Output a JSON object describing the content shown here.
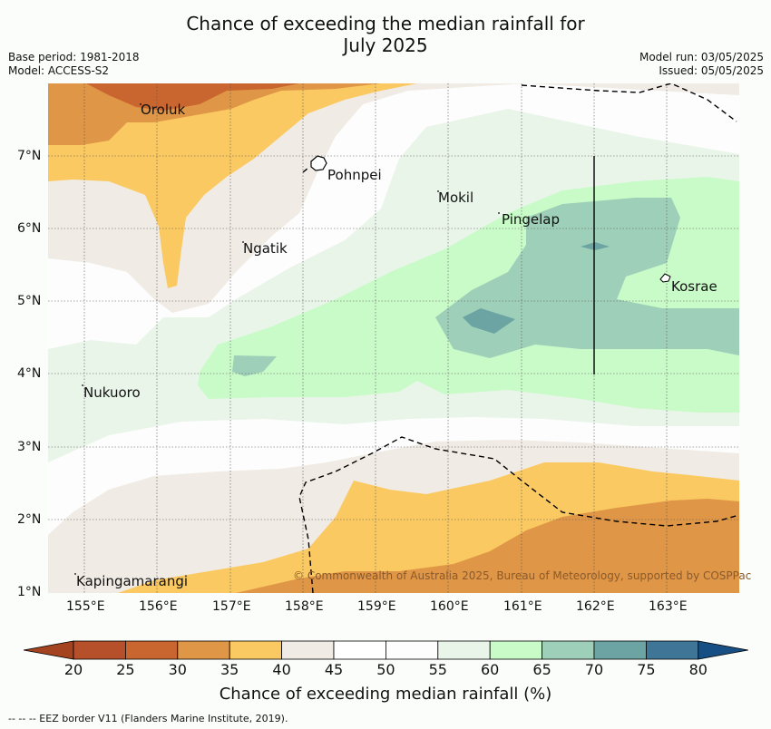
{
  "title_line1": "Chance of exceeding the median rainfall for",
  "title_line2": "July 2025",
  "base_period": "Base period: 1981-2018",
  "model": "Model: ACCESS-S2",
  "model_run": "Model run: 03/05/2025",
  "issued": "Issued: 05/05/2025",
  "copyright": "© Commonwealth of Australia 2025, Bureau of Meteorology, supported by COSPPac",
  "footer_note": "--  --  -- EEZ border V11 (Flanders Marine Institute, 2019).",
  "x_ticks": [
    "155°E",
    "156°E",
    "157°E",
    "158°E",
    "159°E",
    "160°E",
    "161°E",
    "162°E",
    "163°E"
  ],
  "y_ticks": [
    "7°N",
    "6°N",
    "5°N",
    "4°N",
    "3°N",
    "2°N",
    "1°N"
  ],
  "places": [
    "Oroluk",
    "Pohnpei",
    "Mokil",
    "Pingelap",
    "Ngatik",
    "Kosrae",
    "Nukuoro",
    "Kapingamarangi"
  ],
  "colorbar": {
    "label": "Chance of exceeding median rainfall (%)",
    "ticks": [
      "20",
      "25",
      "30",
      "35",
      "40",
      "45",
      "50",
      "55",
      "60",
      "65",
      "70",
      "75",
      "80"
    ],
    "colors": [
      "#a4431f",
      "#b5502a",
      "#c9652f",
      "#e09647",
      "#fbc962",
      "#f0ebe4",
      "#ffffff",
      "#fcfdfc",
      "#eaf5ea",
      "#c8fbc8",
      "#9ecfb8",
      "#6ca3a3",
      "#3f7596",
      "#174f85"
    ]
  }
}
